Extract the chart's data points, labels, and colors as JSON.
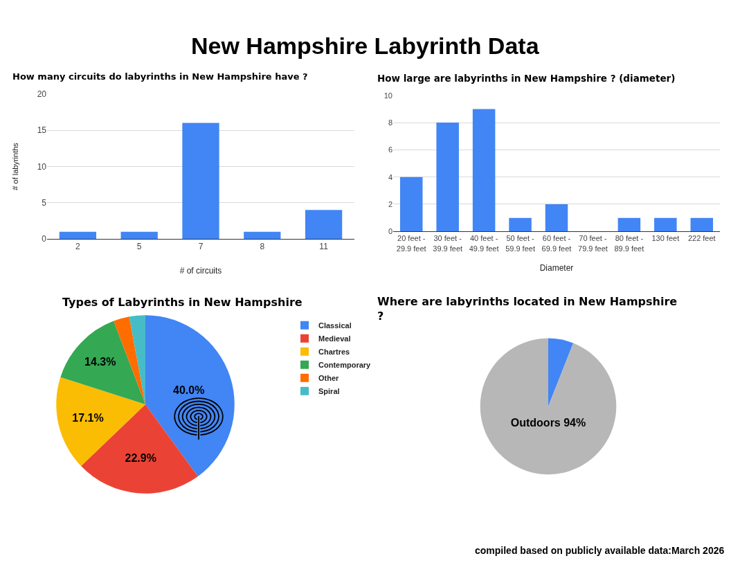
{
  "chart_data": [
    {
      "type": "bar",
      "title": "How many circuits do labyrinths in New Hampshire have ?",
      "annotations": [
        "New Hampshire Labyrinth Data"
      ],
      "categories": [
        "2",
        "5",
        "7",
        "8",
        "11"
      ],
      "values": [
        1,
        1,
        16,
        1,
        4
      ],
      "color": "#4285f4",
      "xlabel": "# of circuits",
      "ylabel": "# of labyrinths",
      "ylim": [
        0,
        20
      ],
      "yticks": [
        0,
        5,
        10,
        15,
        20
      ],
      "grid": "y"
    },
    {
      "type": "bar",
      "title": "How large are labyrinths in New Hampshire ? (diameter)",
      "categories": [
        "20 feet - 29.9 feet",
        "30 feet - 39.9 feet",
        "40 feet - 49.9 feet",
        "50 feet - 59.9 feet",
        "60 feet - 69.9 feet",
        "70 feet - 79.9 feet",
        "80 feet - 89.9 feet",
        "130 feet",
        "222 feet"
      ],
      "values": [
        4,
        8,
        9,
        1,
        2,
        0,
        1,
        1,
        1
      ],
      "color": "#4285f4",
      "xlabel": "Diameter",
      "ylim": [
        0,
        10
      ],
      "yticks": [
        0,
        2,
        4,
        6,
        8,
        10
      ],
      "grid": "y"
    },
    {
      "type": "pie",
      "title": "Types of Labyrinths in New Hampshire",
      "categories": [
        "Classical",
        "Medieval",
        "Chartres",
        "Contemporary",
        "Other",
        "Spiral"
      ],
      "values": [
        40.0,
        22.9,
        17.1,
        14.3,
        2.9,
        2.9
      ],
      "colors": [
        "#4285f4",
        "#ea4335",
        "#fbbc04",
        "#34a853",
        "#ff6d01",
        "#46bdc6"
      ],
      "value_labels": [
        "40.0%",
        "22.9%",
        "17.1%",
        "14.3%",
        null,
        null
      ],
      "legend": "top right"
    },
    {
      "type": "pie",
      "title": "Where are labyrinths located in New Hampshire ?",
      "categories": [
        null,
        "Outdoors"
      ],
      "values": [
        6,
        94
      ],
      "colors": [
        "#4285f4",
        "#b7b7b7"
      ],
      "value_labels": [
        null,
        "94%"
      ],
      "annotations": [
        "compiled based on publicly available data:March 2026"
      ]
    }
  ]
}
